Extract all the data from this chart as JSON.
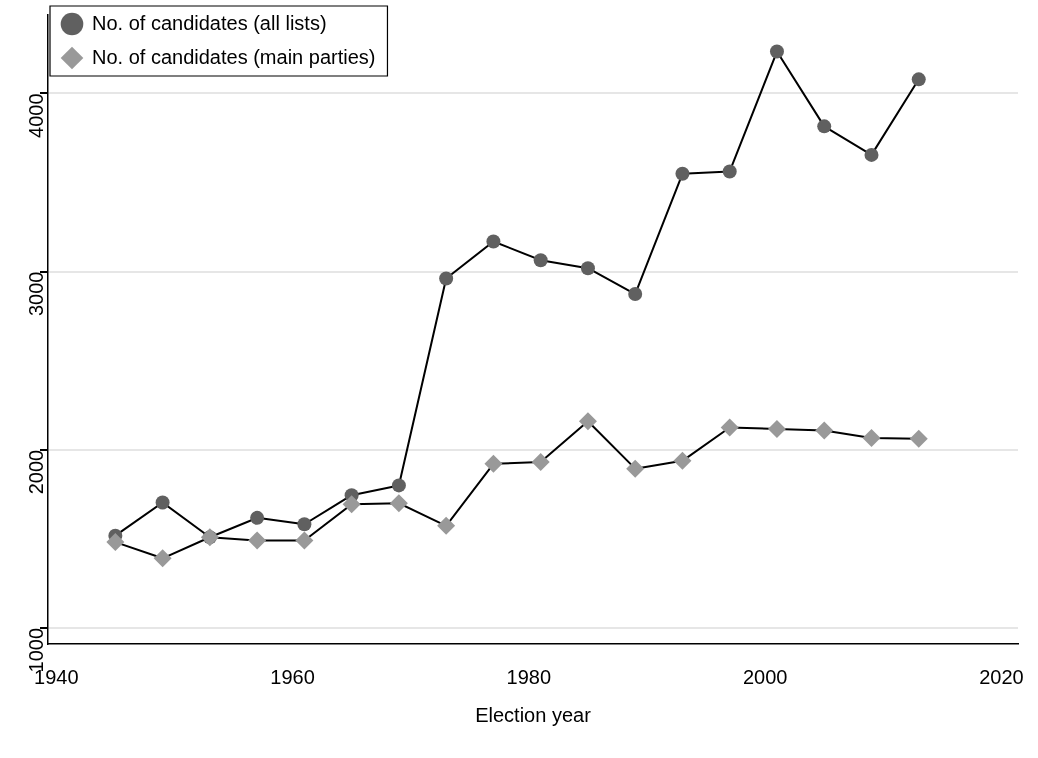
{
  "chart_data": {
    "type": "line",
    "xlabel": "Election year",
    "x": [
      1945,
      1949,
      1953,
      1957,
      1961,
      1965,
      1969,
      1973,
      1977,
      1981,
      1985,
      1989,
      1993,
      1997,
      2001,
      2005,
      2009,
      2013
    ],
    "series": [
      {
        "name": "No. of candidates (all lists)",
        "color": "#606060",
        "marker": "circle",
        "values": [
          1518,
          1704,
          1509,
          1618,
          1582,
          1745,
          1800,
          2961,
          3169,
          3064,
          3019,
          2874,
          3549,
          3562,
          4235,
          3815,
          3655,
          4079
        ]
      },
      {
        "name": "No. of candidates (main parties)",
        "color": "#999999",
        "marker": "diamond",
        "values": [
          1482,
          1391,
          1509,
          1491,
          1491,
          1694,
          1700,
          1573,
          1921,
          1931,
          2160,
          1894,
          1938,
          2125,
          2117,
          2108,
          2066,
          2062
        ]
      }
    ],
    "xlim": [
      1939.3,
      2021.4
    ],
    "xticks": [
      1940,
      1960,
      1980,
      2000,
      2020
    ],
    "ylim": [
      910,
      4440
    ],
    "yticks": [
      1000,
      2000,
      3000,
      4000
    ],
    "grid": "y",
    "legend": "top left",
    "line_style": "solid"
  }
}
